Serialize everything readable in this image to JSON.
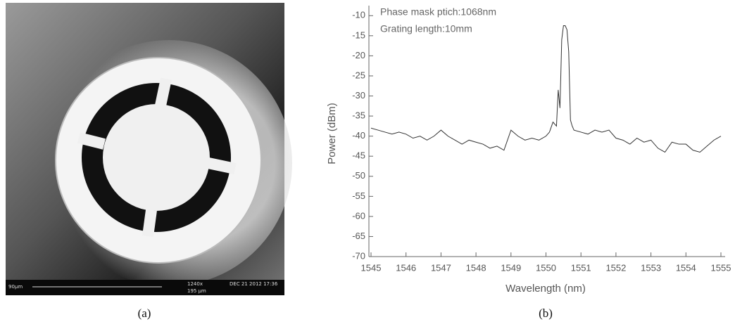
{
  "image_panel": {
    "scale_label": "90µm",
    "magnification": "1240x",
    "field_width": "195 µm",
    "timestamp": "DEC 21 2012 17:36",
    "caption": "(a)"
  },
  "chart_caption": "(b)",
  "chart_data": {
    "type": "line",
    "annotations": [
      "Phase mask ptich:1068nm",
      "Grating length:10mm"
    ],
    "x_label": "Wavelength (nm)",
    "y_label": "Power (dBm)",
    "xlim": [
      1545,
      1555
    ],
    "ylim": [
      -70,
      -7.5
    ],
    "xticks": [
      1545,
      1546,
      1547,
      1548,
      1549,
      1550,
      1551,
      1552,
      1553,
      1554,
      1555
    ],
    "yticks": [
      -70,
      -65,
      -60,
      -55,
      -50,
      -45,
      -40,
      -35,
      -30,
      -25,
      -20,
      -15,
      -10
    ],
    "grid": false,
    "series": [
      {
        "color": "#333333",
        "x": [
          1545,
          1545.2,
          1545.4,
          1545.6,
          1545.8,
          1546,
          1546.2,
          1546.4,
          1546.6,
          1546.8,
          1547,
          1547.2,
          1547.4,
          1547.6,
          1547.8,
          1548,
          1548.2,
          1548.4,
          1548.6,
          1548.8,
          1549,
          1549.2,
          1549.4,
          1549.6,
          1549.8,
          1550,
          1550.1,
          1550.2,
          1550.3,
          1550.35,
          1550.4,
          1550.45,
          1550.5,
          1550.55,
          1550.6,
          1550.65,
          1550.7,
          1550.75,
          1550.8,
          1551,
          1551.2,
          1551.4,
          1551.6,
          1551.8,
          1552,
          1552.2,
          1552.4,
          1552.6,
          1552.8,
          1553,
          1553.2,
          1553.4,
          1553.6,
          1553.8,
          1554,
          1554.2,
          1554.4,
          1554.6,
          1554.8,
          1555
        ],
        "values": [
          -38,
          -38.5,
          -39,
          -39.5,
          -39,
          -39.5,
          -40.5,
          -40,
          -41,
          -40,
          -38.5,
          -40,
          -41,
          -42,
          -41,
          -41.5,
          -42,
          -43,
          -42.5,
          -43.5,
          -38.5,
          -40,
          -41,
          -40.5,
          -41,
          -40,
          -39,
          -36.5,
          -37.5,
          -28.5,
          -33,
          -16,
          -12.5,
          -12.5,
          -13.5,
          -19,
          -36,
          -37.5,
          -38.5,
          -39,
          -39.5,
          -38.5,
          -39,
          -38.5,
          -40.5,
          -41,
          -42,
          -40.5,
          -41.5,
          -41,
          -43,
          -44,
          -41.5,
          -42,
          -42,
          -43.5,
          -44,
          -42.5,
          -41,
          -40
        ]
      }
    ]
  }
}
